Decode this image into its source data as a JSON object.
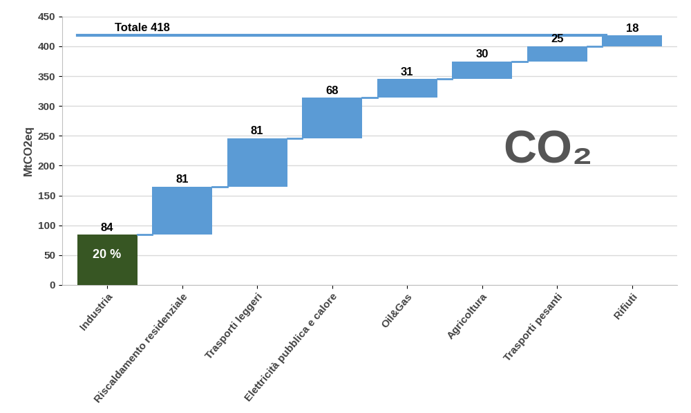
{
  "chart_data": {
    "type": "waterfall",
    "categories": [
      "Industria",
      "Riscaldamento residenziale",
      "Trasporti leggeri",
      "Elettricità pubblica e calore",
      "Oil&Gas",
      "Agricoltura",
      "Trasporti pesanti",
      "Rifiuti"
    ],
    "values": [
      84,
      81,
      81,
      68,
      31,
      30,
      25,
      18
    ],
    "colors": [
      "#375623",
      "#5b9bd5",
      "#5b9bd5",
      "#5b9bd5",
      "#5b9bd5",
      "#5b9bd5",
      "#5b9bd5",
      "#5b9bd5"
    ],
    "y_label": "MtCO2eq",
    "ylim": [
      0,
      450
    ],
    "yticks": [
      0,
      50,
      100,
      150,
      200,
      250,
      300,
      350,
      400,
      450
    ],
    "grid": true,
    "data_labels": true,
    "total": {
      "value": 418,
      "label": "Totale 418"
    },
    "annotations": [
      {
        "text": "20 %",
        "category": "Industria"
      },
      {
        "text": "CO₂"
      }
    ]
  }
}
